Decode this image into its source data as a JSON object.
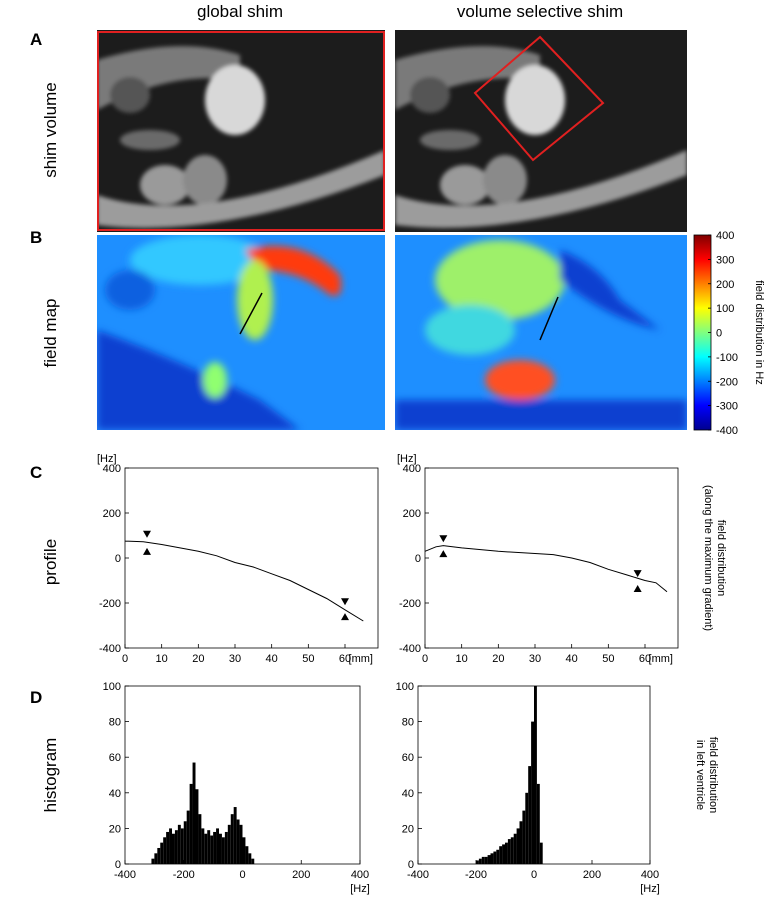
{
  "figure": {
    "column_titles": [
      "global shim",
      "volume selective shim"
    ],
    "panel_labels": [
      "A",
      "B",
      "C",
      "D"
    ],
    "row_labels": [
      "shim volume",
      "field map",
      "profile",
      "histogram"
    ]
  },
  "chart_data": [
    {
      "type": "colorbar",
      "label": "field distribution in Hz",
      "ylim": [
        -400,
        400
      ],
      "yticks": [
        -400,
        -300,
        -200,
        -100,
        0,
        100,
        200,
        300,
        400
      ]
    },
    {
      "type": "line",
      "y_unit": "[Hz]",
      "x_unit": "[mm]",
      "color": "#000000",
      "x": [
        0,
        5,
        10,
        15,
        20,
        25,
        30,
        35,
        40,
        45,
        50,
        55,
        60,
        65
      ],
      "values": [
        75,
        72,
        60,
        45,
        30,
        10,
        -20,
        -40,
        -70,
        -100,
        -140,
        -180,
        -230,
        -280
      ],
      "markers": [
        {
          "x": 6,
          "y": 90,
          "direction": "down"
        },
        {
          "x": 6,
          "y": 45,
          "direction": "up"
        },
        {
          "x": 60,
          "y": -210,
          "direction": "down"
        },
        {
          "x": 60,
          "y": -245,
          "direction": "up"
        }
      ],
      "xlim": [
        0,
        69
      ],
      "ylim": [
        -400,
        400
      ],
      "xticks": [
        0,
        10,
        20,
        30,
        40,
        50,
        60
      ],
      "yticks": [
        -400,
        -200,
        0,
        200,
        400
      ]
    },
    {
      "type": "line",
      "y_unit": "[Hz]",
      "x_unit": "[mm]",
      "color": "#000000",
      "side_label": [
        "field distribution",
        "(along the maximum gradient)"
      ],
      "x": [
        0,
        3,
        5,
        10,
        20,
        30,
        35,
        40,
        45,
        50,
        55,
        60,
        63,
        66
      ],
      "values": [
        30,
        50,
        55,
        45,
        30,
        20,
        15,
        0,
        -20,
        -50,
        -75,
        -100,
        -110,
        -150
      ],
      "markers": [
        {
          "x": 5,
          "y": 70,
          "direction": "down"
        },
        {
          "x": 5,
          "y": 35,
          "direction": "up"
        },
        {
          "x": 58,
          "y": -85,
          "direction": "down"
        },
        {
          "x": 58,
          "y": -120,
          "direction": "up"
        }
      ],
      "xlim": [
        0,
        69
      ],
      "ylim": [
        -400,
        400
      ],
      "xticks": [
        0,
        10,
        20,
        30,
        40,
        50,
        60
      ],
      "yticks": [
        -400,
        -200,
        0,
        200,
        400
      ]
    },
    {
      "type": "histogram",
      "x_unit": "[Hz]",
      "color": "#000000",
      "bins": [
        -310,
        -300,
        -290,
        -280,
        -270,
        -260,
        -250,
        -240,
        -230,
        -220,
        -210,
        -200,
        -190,
        -180,
        -170,
        -160,
        -150,
        -140,
        -130,
        -120,
        -110,
        -100,
        -90,
        -80,
        -70,
        -60,
        -50,
        -40,
        -30,
        -20,
        -10,
        0,
        10,
        20,
        30,
        40
      ],
      "values": [
        3,
        6,
        9,
        12,
        15,
        18,
        20,
        17,
        19,
        22,
        20,
        24,
        30,
        45,
        57,
        42,
        28,
        20,
        17,
        19,
        16,
        18,
        20,
        17,
        15,
        18,
        22,
        28,
        32,
        25,
        22,
        15,
        10,
        6,
        3
      ],
      "xlim": [
        -400,
        400
      ],
      "ylim": [
        0,
        100
      ],
      "xticks": [
        -400,
        -200,
        0,
        200,
        400
      ],
      "yticks": [
        0,
        20,
        40,
        60,
        80,
        100
      ]
    },
    {
      "type": "histogram",
      "x_unit": "[Hz]",
      "color": "#000000",
      "side_label": [
        "field distribution",
        "in left ventricle"
      ],
      "bins": [
        -200,
        -190,
        -180,
        -170,
        -160,
        -150,
        -140,
        -130,
        -120,
        -110,
        -100,
        -90,
        -80,
        -70,
        -60,
        -50,
        -40,
        -30,
        -20,
        -10,
        0,
        10,
        20,
        30
      ],
      "values": [
        2,
        3,
        4,
        4,
        5,
        6,
        7,
        8,
        10,
        11,
        12,
        14,
        15,
        17,
        20,
        24,
        30,
        40,
        55,
        80,
        100,
        45,
        12
      ],
      "xlim": [
        -400,
        400
      ],
      "ylim": [
        0,
        100
      ],
      "xticks": [
        -400,
        -200,
        0,
        200,
        400
      ],
      "yticks": [
        0,
        20,
        40,
        60,
        80,
        100
      ]
    }
  ]
}
